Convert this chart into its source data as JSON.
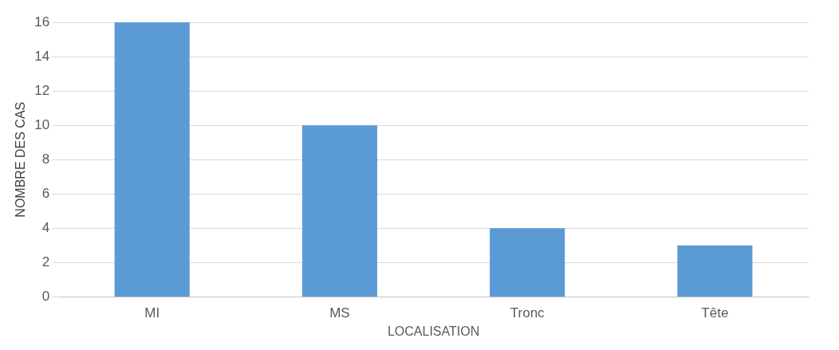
{
  "chart_data": {
    "type": "bar",
    "categories": [
      "MI",
      "MS",
      "Tronc",
      "Tête"
    ],
    "values": [
      16,
      10,
      4,
      3
    ],
    "color": "#5b9bd5",
    "xlabel": "LOCALISATION",
    "ylabel": "NOMBRE DES CAS",
    "ylim": [
      0,
      16
    ],
    "yticks": [
      0,
      2,
      4,
      6,
      8,
      10,
      12,
      14,
      16
    ],
    "grid": "y",
    "legend": false
  }
}
